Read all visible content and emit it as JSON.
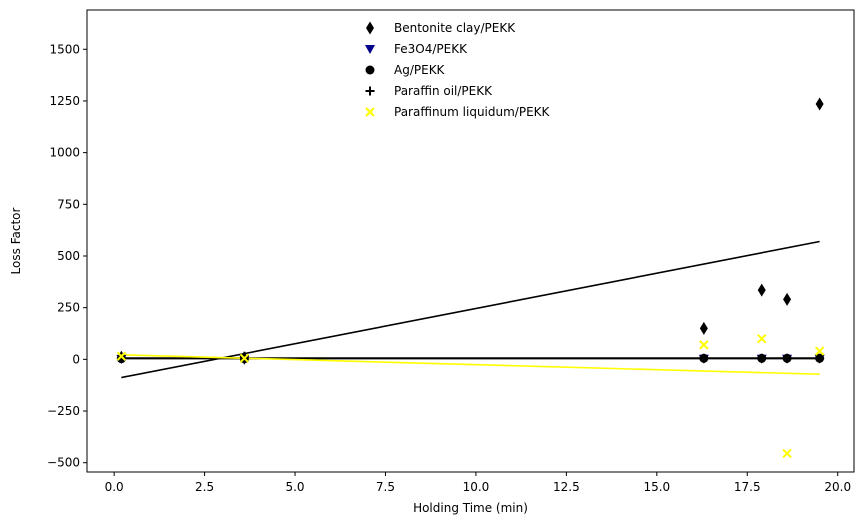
{
  "chart_data": {
    "type": "scatter",
    "title": "",
    "xlabel": "Holding Time (min)",
    "ylabel": "Loss Factor",
    "xlim": [
      -0.75,
      20.45
    ],
    "ylim": [
      -545,
      1690
    ],
    "xticks": [
      0.0,
      2.5,
      5.0,
      7.5,
      10.0,
      12.5,
      15.0,
      17.5,
      20.0
    ],
    "xtick_labels": [
      "0.0",
      "2.5",
      "5.0",
      "7.5",
      "10.0",
      "12.5",
      "15.0",
      "17.5",
      "20.0"
    ],
    "yticks": [
      -500,
      -250,
      0,
      250,
      500,
      750,
      1000,
      1250,
      1500
    ],
    "ytick_labels": [
      "−500",
      "−250",
      "0",
      "250",
      "500",
      "750",
      "1000",
      "1250",
      "1500"
    ],
    "grid": false,
    "legend_position": "upper-center",
    "series": [
      {
        "name": "Bentonite clay/PEKK",
        "marker": "thin-diamond",
        "color": "#000000",
        "x": [
          0.2,
          3.6,
          16.3,
          17.9,
          18.6,
          19.5
        ],
        "y": [
          10,
          5,
          150,
          335,
          290,
          1235
        ]
      },
      {
        "name": "Fe3O4/PEKK",
        "marker": "triangle-down",
        "color": "#00008b",
        "x": [
          0.2,
          3.6,
          16.3,
          17.9,
          18.6,
          19.5
        ],
        "y": [
          2,
          2,
          3,
          3,
          3,
          3
        ]
      },
      {
        "name": "Ag/PEKK",
        "marker": "circle",
        "color": "#000000",
        "x": [
          0.2,
          3.6,
          16.3,
          17.9,
          18.6,
          19.5
        ],
        "y": [
          3,
          3,
          5,
          5,
          5,
          5
        ]
      },
      {
        "name": "Paraffin oil/PEKK",
        "marker": "plus",
        "color": "#000000",
        "x": [
          0.2,
          3.6,
          16.3,
          17.9,
          18.6,
          19.5
        ],
        "y": [
          5,
          15,
          5,
          5,
          5,
          5
        ]
      },
      {
        "name": "Paraffinum liquidum/PEKK",
        "marker": "x",
        "color": "#ffff00",
        "x": [
          0.2,
          3.6,
          16.3,
          17.9,
          18.6,
          19.5
        ],
        "y": [
          15,
          5,
          70,
          100,
          -455,
          40
        ]
      }
    ],
    "trend_lines": [
      {
        "color": "#000000",
        "x": [
          0.2,
          19.5
        ],
        "y": [
          -88,
          570
        ]
      },
      {
        "color": "#000000",
        "x": [
          0.2,
          19.5
        ],
        "y": [
          6,
          6
        ]
      },
      {
        "color": "#000000",
        "x": [
          0.2,
          19.5
        ],
        "y": [
          4,
          4
        ]
      },
      {
        "color": "#ffff00",
        "x": [
          0.2,
          19.5
        ],
        "y": [
          22,
          -72
        ]
      }
    ]
  }
}
